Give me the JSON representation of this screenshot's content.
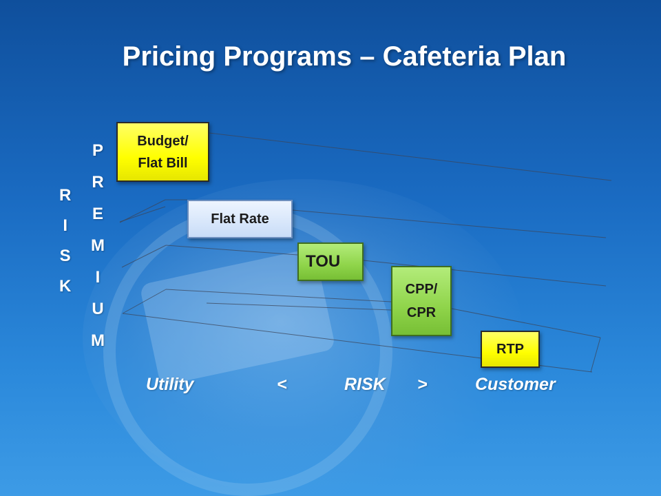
{
  "title": "Pricing Programs – Cafeteria Plan",
  "left_labels": {
    "risk": [
      "R",
      "I",
      "S",
      "K"
    ],
    "premium": [
      "P",
      "R",
      "E",
      "M",
      "I",
      "U",
      "M"
    ]
  },
  "programs": [
    {
      "label": "Budget/\nFlat Bill",
      "color": "#ffff00"
    },
    {
      "label": "Flat Rate",
      "color": "#c8dcf7"
    },
    {
      "label": "TOU",
      "color": "#8fd44a"
    },
    {
      "label": "CPP/\nCPR",
      "color": "#8fd44a"
    },
    {
      "label": "RTP",
      "color": "#ffff00"
    }
  ],
  "axis": {
    "utility": "Utility",
    "less_than": "<",
    "risk": "RISK",
    "greater_than": ">",
    "customer": "Customer"
  }
}
